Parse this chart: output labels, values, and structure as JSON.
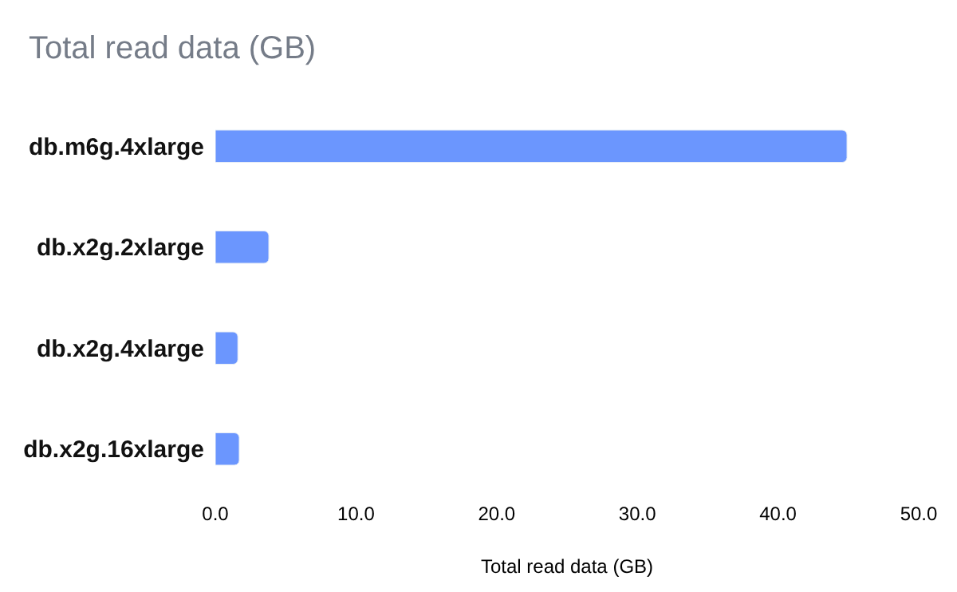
{
  "chart_data": {
    "type": "bar",
    "orientation": "horizontal",
    "title": "Total read data (GB)",
    "xlabel": "Total read data (GB)",
    "categories": [
      "db.m6g.4xlarge",
      "db.x2g.2xlarge",
      "db.x2g.4xlarge",
      "db.x2g.16xlarge"
    ],
    "values": [
      44.9,
      3.8,
      1.6,
      1.7
    ],
    "color": "#6b96fe",
    "xlim": [
      0,
      50
    ],
    "xticks": [
      {
        "value": 0,
        "label": "0.0"
      },
      {
        "value": 10,
        "label": "10.0"
      },
      {
        "value": 20,
        "label": "20.0"
      },
      {
        "value": 30,
        "label": "30.0"
      },
      {
        "value": 40,
        "label": "40.0"
      },
      {
        "value": 50,
        "label": "50.0"
      }
    ],
    "legend": false
  }
}
